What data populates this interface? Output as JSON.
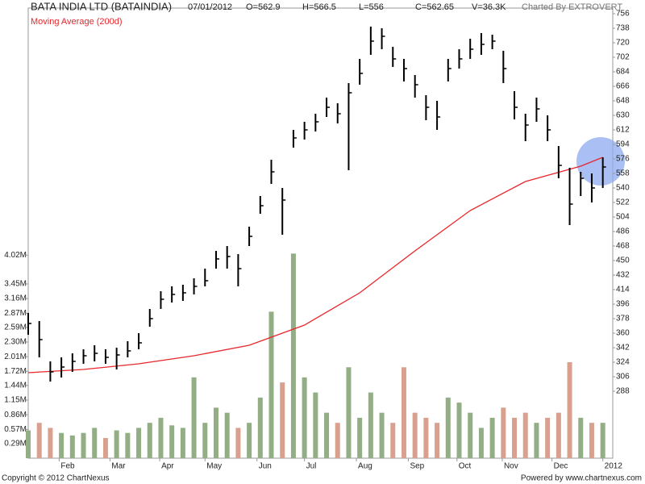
{
  "chart_data": {
    "type": "ohlc",
    "title": "BATA INDIA LTD (BATAINDIA)",
    "date": "07/01/2012",
    "quote": [
      "O=562.9",
      "H=566.5",
      "L=556",
      "C=562.65",
      "V=36.3K"
    ],
    "credit": "Charted By EXTROVERT",
    "x": [
      0,
      1,
      2,
      3,
      4,
      5,
      6,
      7,
      8,
      9,
      10,
      11,
      12,
      13,
      14,
      15,
      16,
      17,
      18,
      19,
      20,
      21,
      22,
      23,
      24,
      25,
      26,
      27,
      28,
      29,
      30,
      31,
      32,
      33,
      34,
      35,
      36,
      37,
      38,
      39,
      40,
      41,
      42,
      43,
      44,
      45,
      46,
      47,
      48,
      49,
      50,
      51,
      52
    ],
    "high": [
      385,
      375,
      325,
      330,
      335,
      340,
      345,
      340,
      342,
      350,
      360,
      390,
      412,
      418,
      420,
      428,
      440,
      462,
      468,
      458,
      492,
      530,
      575,
      540,
      612,
      622,
      632,
      652,
      645,
      670,
      700,
      740,
      738,
      715,
      700,
      680,
      655,
      648,
      700,
      712,
      725,
      732,
      730,
      710,
      660,
      632,
      652,
      630,
      592,
      565,
      560,
      558,
      578
    ],
    "low": [
      358,
      330,
      300,
      305,
      312,
      322,
      325,
      322,
      315,
      330,
      340,
      368,
      390,
      398,
      400,
      408,
      418,
      440,
      440,
      418,
      468,
      508,
      545,
      482,
      590,
      600,
      610,
      628,
      620,
      562,
      668,
      705,
      712,
      690,
      672,
      652,
      624,
      612,
      672,
      688,
      700,
      705,
      712,
      670,
      625,
      598,
      622,
      598,
      552,
      494,
      530,
      522,
      540
    ],
    "close": [
      372,
      352,
      312,
      318,
      325,
      332,
      335,
      330,
      333,
      338,
      348,
      378,
      402,
      408,
      410,
      418,
      425,
      452,
      455,
      440,
      480,
      518,
      560,
      525,
      602,
      612,
      622,
      640,
      632,
      658,
      682,
      722,
      728,
      700,
      688,
      668,
      640,
      628,
      688,
      700,
      712,
      718,
      722,
      688,
      640,
      618,
      638,
      612,
      568,
      520,
      552,
      540,
      566
    ],
    "color": "#000000",
    "xlim": [
      0,
      52.9
    ],
    "xticks": [
      {
        "value": 2.8,
        "label": "Feb"
      },
      {
        "value": 7.4,
        "label": "Mar"
      },
      {
        "value": 11.9,
        "label": "Apr"
      },
      {
        "value": 16.0,
        "label": "May"
      },
      {
        "value": 20.7,
        "label": "Jun"
      },
      {
        "value": 25.0,
        "label": "Jul"
      },
      {
        "value": 29.7,
        "label": "Aug"
      },
      {
        "value": 34.4,
        "label": "Sep"
      },
      {
        "value": 38.8,
        "label": "Oct"
      },
      {
        "value": 42.9,
        "label": "Nov"
      },
      {
        "value": 47.4,
        "label": "Dec"
      },
      {
        "value": 52.0,
        "label": "2012"
      }
    ],
    "ylim": [
      205,
      763
    ],
    "yticks": [
      288,
      306,
      324,
      342,
      360,
      378,
      396,
      414,
      432,
      450,
      468,
      486,
      504,
      522,
      540,
      558,
      576,
      594,
      612,
      630,
      648,
      666,
      684,
      702,
      720,
      738,
      756
    ],
    "moving_average": {
      "name": "Moving Average (200d)",
      "color": "#e8262b",
      "x": [
        0,
        5,
        10,
        15,
        20,
        25,
        30,
        35,
        40,
        45,
        50,
        52
      ],
      "values": [
        311,
        315,
        322,
        332,
        345,
        370,
        410,
        462,
        512,
        548,
        567,
        578
      ]
    },
    "volume": {
      "values": [
        0.55,
        0.7,
        0.6,
        0.5,
        0.45,
        0.5,
        0.6,
        0.4,
        0.55,
        0.5,
        0.6,
        0.7,
        0.8,
        0.65,
        0.6,
        1.6,
        0.7,
        1.0,
        0.9,
        0.6,
        0.7,
        1.2,
        2.9,
        1.5,
        4.05,
        1.6,
        1.3,
        0.9,
        0.7,
        1.8,
        0.8,
        1.3,
        0.9,
        0.7,
        1.8,
        0.9,
        0.8,
        0.7,
        1.2,
        1.1,
        0.9,
        0.6,
        0.8,
        1.0,
        0.8,
        0.9,
        0.7,
        0.8,
        0.9,
        1.9,
        0.8,
        0.7,
        0.7
      ],
      "up_color": "#93ad85",
      "down_color": "#d9a090",
      "ylim": [
        0,
        8.91
      ],
      "yticks": [
        {
          "value": 0.29,
          "label": "0.29M"
        },
        {
          "value": 0.57,
          "label": "0.57M"
        },
        {
          "value": 0.86,
          "label": "0.86M"
        },
        {
          "value": 1.15,
          "label": "1.15M"
        },
        {
          "value": 1.44,
          "label": "1.44M"
        },
        {
          "value": 1.72,
          "label": "1.72M"
        },
        {
          "value": 2.01,
          "label": "2.01M"
        },
        {
          "value": 2.3,
          "label": "2.30M"
        },
        {
          "value": 2.59,
          "label": "2.59M"
        },
        {
          "value": 2.87,
          "label": "2.87M"
        },
        {
          "value": 3.16,
          "label": "3.16M"
        },
        {
          "value": 3.45,
          "label": "3.45M"
        },
        {
          "value": 4.02,
          "label": "4.02M"
        }
      ]
    }
  },
  "footer": {
    "copyright": "Copyright © 2012 ChartNexus",
    "powered": "Powered by www.chartnexus.com"
  }
}
